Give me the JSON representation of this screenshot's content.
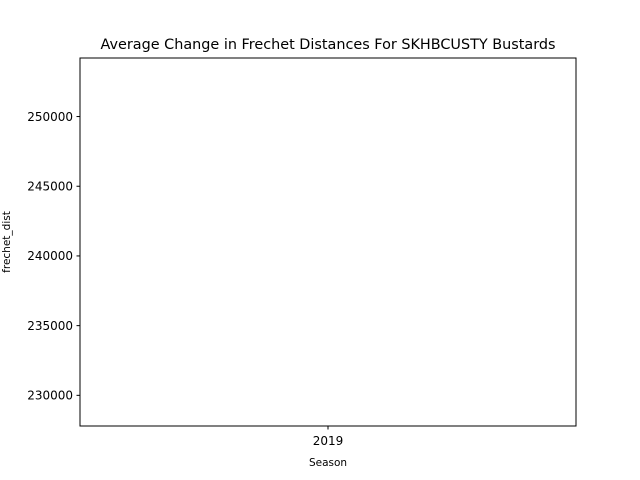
{
  "chart_data": {
    "type": "line",
    "title": "Average Change in Frechet Distances For SKHBCUSTY Bustards",
    "xlabel": "Season",
    "ylabel": "frechet_dist",
    "categories": [
      "2019"
    ],
    "series": [
      {
        "values": [
          null
        ]
      }
    ],
    "ylim": [
      227800,
      254200
    ],
    "yticks": [
      {
        "value": 230000,
        "label": "230000"
      },
      {
        "value": 235000,
        "label": "235000"
      },
      {
        "value": 240000,
        "label": "240000"
      },
      {
        "value": 245000,
        "label": "245000"
      },
      {
        "value": 250000,
        "label": "250000"
      }
    ],
    "xticks": [
      {
        "index": 0,
        "label": "2019"
      }
    ],
    "grid": false,
    "legend": "none",
    "colors": {
      "axis": "#000000",
      "background": "#ffffff"
    }
  }
}
